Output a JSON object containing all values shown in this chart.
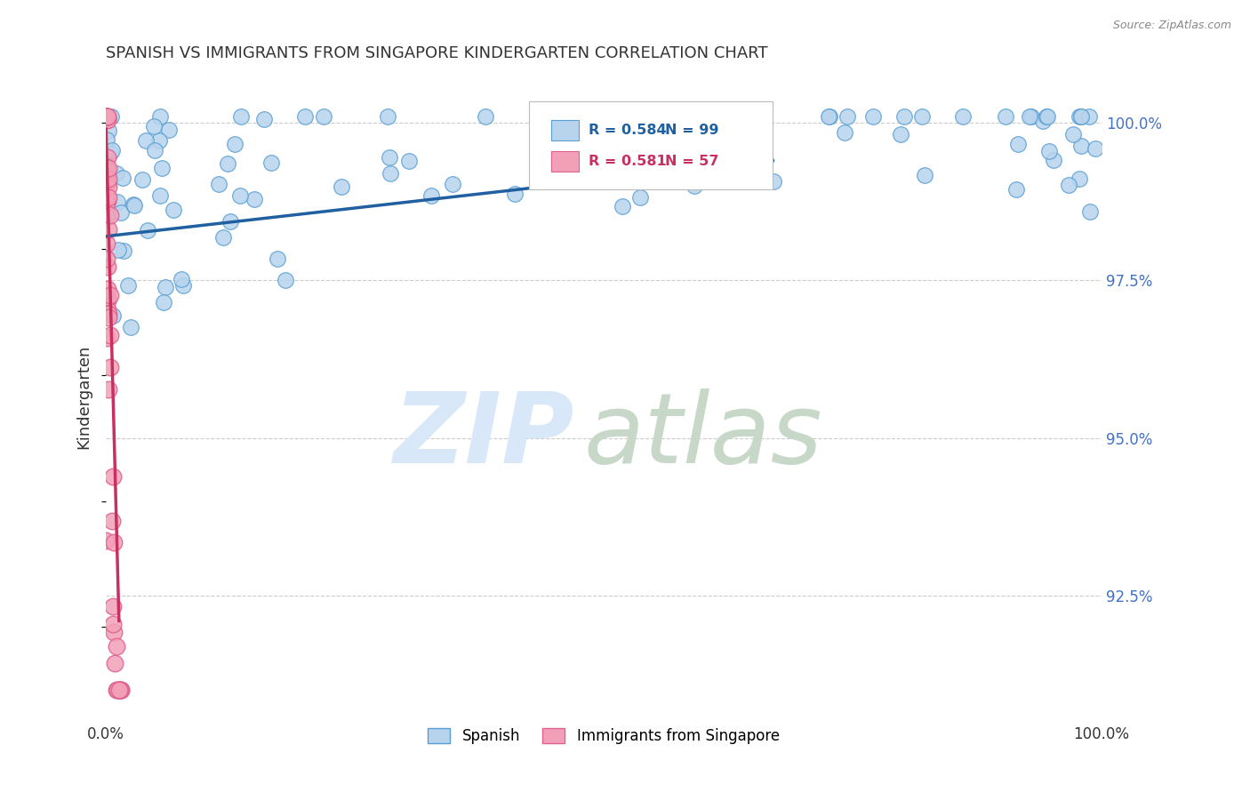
{
  "title": "SPANISH VS IMMIGRANTS FROM SINGAPORE KINDERGARTEN CORRELATION CHART",
  "source_text": "Source: ZipAtlas.com",
  "ylabel": "Kindergarten",
  "xlim": [
    0.0,
    1.0
  ],
  "ylim": [
    0.905,
    1.008
  ],
  "yticks": [
    0.925,
    0.95,
    0.975,
    1.0
  ],
  "ytick_labels": [
    "92.5%",
    "95.0%",
    "97.5%",
    "100.0%"
  ],
  "xticks": [
    0.0,
    1.0
  ],
  "xtick_labels": [
    "0.0%",
    "100.0%"
  ],
  "legend_entries": [
    "Spanish",
    "Immigrants from Singapore"
  ],
  "blue_R": 0.584,
  "blue_N": 99,
  "pink_R": 0.581,
  "pink_N": 57,
  "blue_color": "#b8d4ed",
  "pink_color": "#f2a0b8",
  "blue_edge": "#5a9fd4",
  "pink_edge": "#e06090",
  "trend_blue": "#2060a0",
  "trend_pink": "#c83060",
  "background": "#ffffff",
  "grid_color": "#cccccc",
  "title_color": "#333333",
  "ytick_color": "#4472c4",
  "watermark_zip_color": "#d8e8f8",
  "watermark_atlas_color": "#c8d8c8"
}
